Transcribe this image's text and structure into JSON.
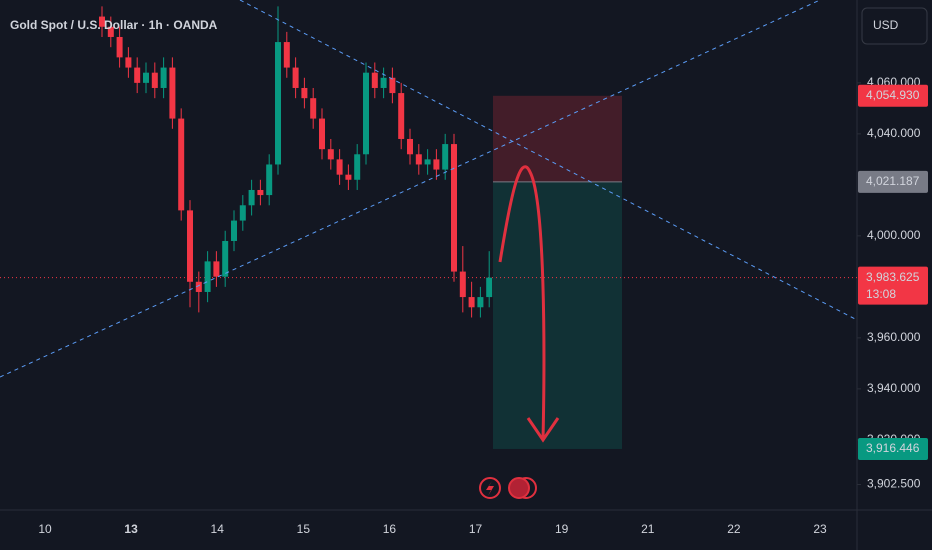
{
  "chart_data": {
    "type": "candlestick",
    "title": "Gold Spot / U.S. Dollar · 1h · OANDA",
    "currency": "USD",
    "countdown": "13:08",
    "categories": [
      "10",
      "13",
      "14",
      "15",
      "16",
      "17",
      "19",
      "21",
      "22",
      "23"
    ],
    "open": [
      4086,
      4082,
      4078,
      4070,
      4066,
      4060,
      4064,
      4058,
      4066,
      4046,
      4010,
      3982,
      3978,
      3990,
      3984,
      3998,
      4006,
      4012,
      4018,
      4016,
      4028,
      4076,
      4066,
      4058,
      4054,
      4046,
      4034,
      4030,
      4024,
      4022,
      4032,
      4064,
      4058,
      4062,
      4056,
      4038,
      4032,
      4028,
      4030,
      4026,
      4036,
      3986,
      3976,
      3972,
      3976
    ],
    "high": [
      4090,
      4086,
      4082,
      4074,
      4070,
      4068,
      4068,
      4070,
      4070,
      4050,
      4014,
      3986,
      3994,
      3994,
      4002,
      4010,
      4016,
      4022,
      4022,
      4032,
      4090,
      4080,
      4070,
      4062,
      4058,
      4050,
      4038,
      4034,
      4028,
      4036,
      4068,
      4068,
      4066,
      4066,
      4060,
      4042,
      4036,
      4034,
      4034,
      4040,
      4040,
      3996,
      3982,
      3980,
      3994
    ],
    "low": [
      4078,
      4074,
      4066,
      4062,
      4056,
      4056,
      4054,
      4054,
      4042,
      4006,
      3972,
      3970,
      3974,
      3980,
      3980,
      3994,
      4002,
      4008,
      4012,
      4012,
      4024,
      4062,
      4054,
      4050,
      4042,
      4030,
      4026,
      4020,
      4018,
      4018,
      4028,
      4054,
      4054,
      4052,
      4034,
      4028,
      4024,
      4024,
      4022,
      4022,
      3982,
      3970,
      3968,
      3968,
      3972
    ],
    "close": [
      4082,
      4078,
      4070,
      4066,
      4060,
      4064,
      4058,
      4066,
      4046,
      4010,
      3982,
      3978,
      3990,
      3984,
      3998,
      4006,
      4012,
      4018,
      4016,
      4028,
      4076,
      4066,
      4058,
      4054,
      4046,
      4034,
      4030,
      4024,
      4022,
      4032,
      4064,
      4058,
      4062,
      4056,
      4038,
      4032,
      4028,
      4030,
      4026,
      4036,
      3986,
      3976,
      3972,
      3976,
      3983.625
    ],
    "up_color": "#089981",
    "down_color": "#f23645",
    "ylim": [
      3892.5,
      4092.5
    ],
    "yticks": [
      {
        "value": 3902.5,
        "label": "3,902.500"
      },
      {
        "value": 3920,
        "label": "3,920.000"
      },
      {
        "value": 3940,
        "label": "3,940.000"
      },
      {
        "value": 3960,
        "label": "3,960.000"
      },
      {
        "value": 4000,
        "label": "4,000.000"
      },
      {
        "value": 4040,
        "label": "4,040.000"
      },
      {
        "value": 4060,
        "label": "4,060.000"
      }
    ],
    "price_tags": [
      {
        "value": 4054.93,
        "label": "4,054.930",
        "color": "#f23645"
      },
      {
        "value": 4021.187,
        "label": "4,021.187",
        "color": "#787b86"
      },
      {
        "value": 3983.625,
        "label": "3,983.625",
        "color": "#f23645"
      },
      {
        "value": 3916.446,
        "label": "3,916.446",
        "color": "#089981"
      }
    ]
  }
}
